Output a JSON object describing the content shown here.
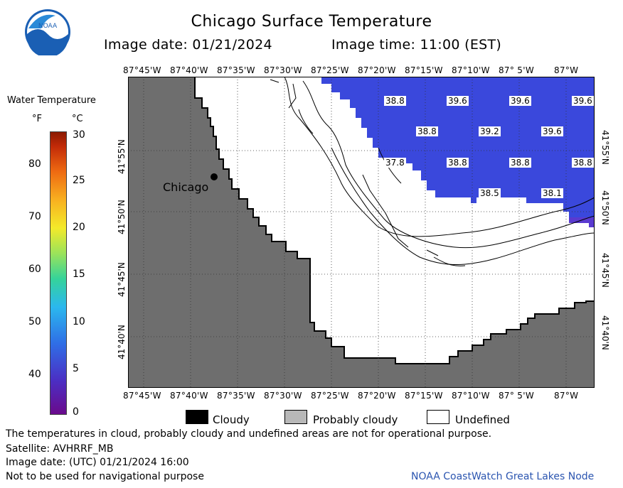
{
  "header": {
    "title": "Chicago Surface Temperature",
    "image_date": "Image date: 01/21/2024",
    "image_time": "Image time: 11:00 (EST)"
  },
  "logo": {
    "text": "NOAA",
    "icon": "noaa-logo"
  },
  "map": {
    "place_label": "Chicago",
    "lon_labels": [
      "87°45'W",
      "87°40'W",
      "87°35'W",
      "87°30'W",
      "87°25'W",
      "87°20'W",
      "87°15'W",
      "87°10'W",
      "87° 5'W",
      "87°W"
    ],
    "lat_labels": [
      "41°55'N",
      "41°50'N",
      "41°45'N",
      "41°40'N"
    ],
    "temperature_labels": [
      {
        "value": "38.8",
        "row": 0,
        "col": 0
      },
      {
        "value": "39.6",
        "row": 0,
        "col": 1
      },
      {
        "value": "39.6",
        "row": 0,
        "col": 2
      },
      {
        "value": "39.6",
        "row": 0,
        "col": 3
      },
      {
        "value": "38.8",
        "row": 1,
        "col": 0
      },
      {
        "value": "39.2",
        "row": 1,
        "col": 1
      },
      {
        "value": "39.6",
        "row": 1,
        "col": 2
      },
      {
        "value": "37.8",
        "row": 2,
        "col": 0
      },
      {
        "value": "38.8",
        "row": 2,
        "col": 1
      },
      {
        "value": "38.8",
        "row": 2,
        "col": 2
      },
      {
        "value": "38.8",
        "row": 2,
        "col": 3
      },
      {
        "value": "38.5",
        "row": 3,
        "col": 0
      },
      {
        "value": "38.1",
        "row": 3,
        "col": 1
      }
    ],
    "colors": {
      "land": "#6e6e6e",
      "water": "#3a48dc",
      "undefined": "#ffffff"
    }
  },
  "legend": {
    "title": "Water Temperature",
    "unit_f": "°F",
    "unit_c": "°C",
    "f_ticks": [
      "80",
      "70",
      "60",
      "50",
      "40"
    ],
    "c_ticks": [
      "30",
      "25",
      "20",
      "15",
      "10",
      "5",
      "0"
    ]
  },
  "key": {
    "cloudy": "Cloudy",
    "probably_cloudy": "Probably cloudy",
    "undefined": "Undefined"
  },
  "footer": {
    "line1": "The temperatures in cloud, probably cloudy and undefined areas are not for operational purpose.",
    "line2": "Satellite: AVHRRF_MB",
    "line3": "Image date: (UTC) 01/21/2024  16:00",
    "line4": "Not to be used for navigational purpose",
    "credit": "NOAA CoastWatch Great Lakes Node"
  }
}
